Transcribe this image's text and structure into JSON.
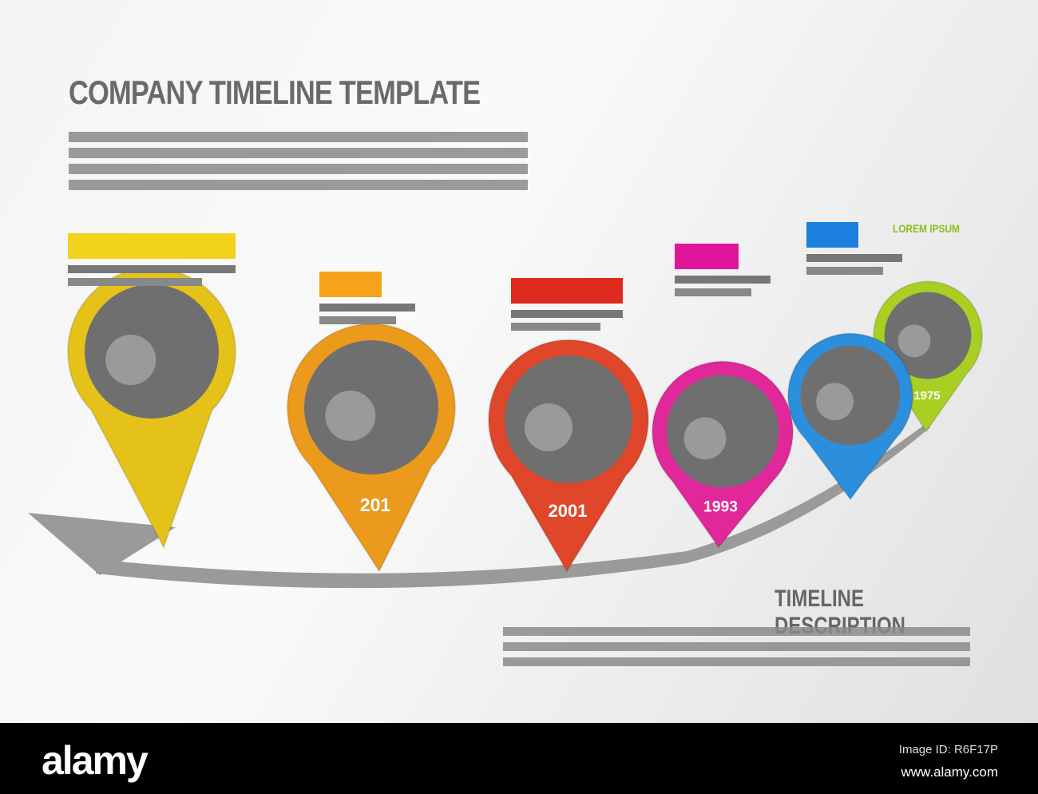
{
  "title": "COMPANY TIMELINE TEMPLATE",
  "accent_label": "LOREM IPSUM",
  "description_title": "TIMELINE DESCRIPTION",
  "pins": [
    {
      "year": "",
      "color": "#e4c21a",
      "label_color": "#f2d21a"
    },
    {
      "year": "201",
      "color": "#eb9a1c",
      "label_color": "#f7a21b"
    },
    {
      "year": "2001",
      "color": "#e0462a",
      "label_color": "#de2b1e"
    },
    {
      "year": "1993",
      "color": "#e0289a",
      "label_color": "#e0169a"
    },
    {
      "year": "",
      "color": "#2b8fde",
      "label_color": "#1b7fde"
    },
    {
      "year": "1975",
      "color": "#a8cf22",
      "label_color": "#8cbf1f"
    }
  ],
  "footer": {
    "logo": "alamy",
    "image_id": "Image ID: R6F17P",
    "url": "www.alamy.com"
  }
}
